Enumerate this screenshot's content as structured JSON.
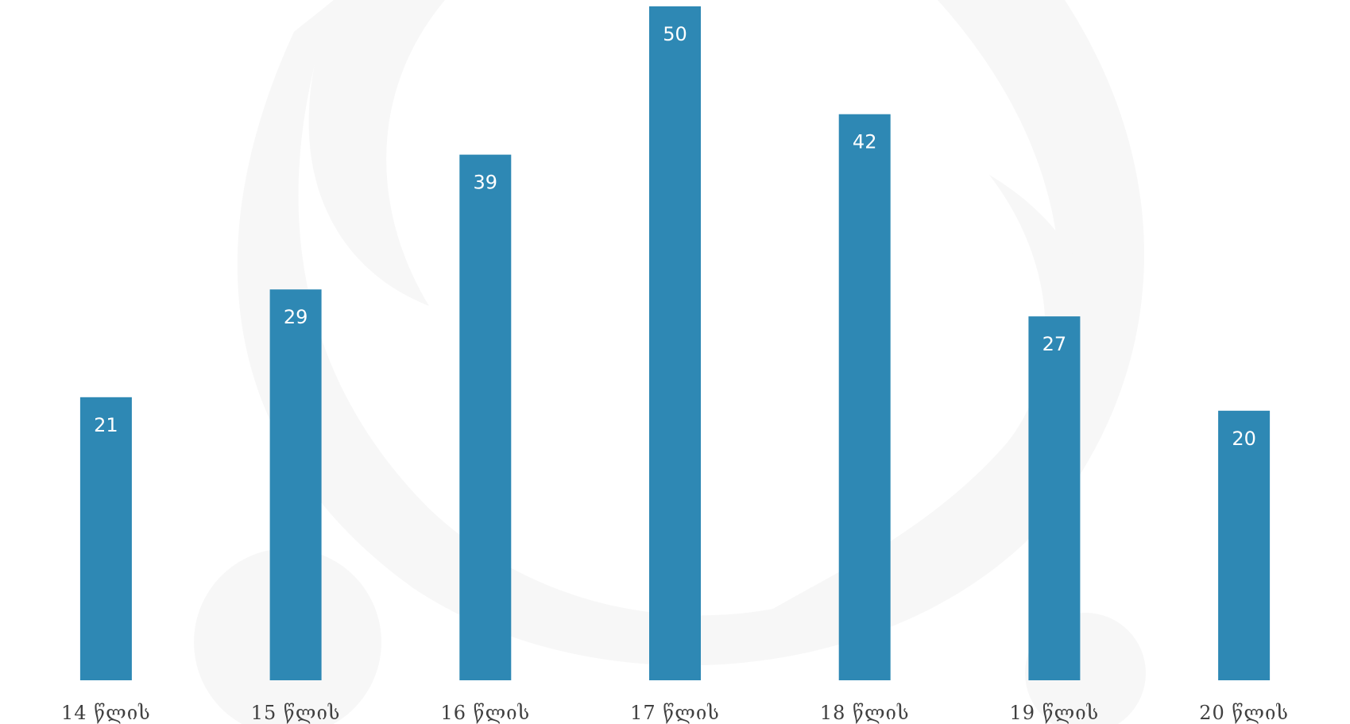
{
  "chart_data": {
    "type": "bar",
    "categories": [
      "14 წლის",
      "15 წლის",
      "16 წლის",
      "17 წლის",
      "18 წლის",
      "19 წლის",
      "20 წლის"
    ],
    "values": [
      21,
      29,
      39,
      50,
      42,
      27,
      20
    ],
    "title": "",
    "xlabel": "",
    "ylabel": "",
    "ylim": [
      0,
      50
    ],
    "grid": false,
    "legend": "none",
    "data_labels": "inside-top",
    "colors": {
      "bar": "#2e88b4",
      "data_label": "#ffffff",
      "tick_label": "#404040",
      "watermark": "#f7f7f7"
    }
  }
}
